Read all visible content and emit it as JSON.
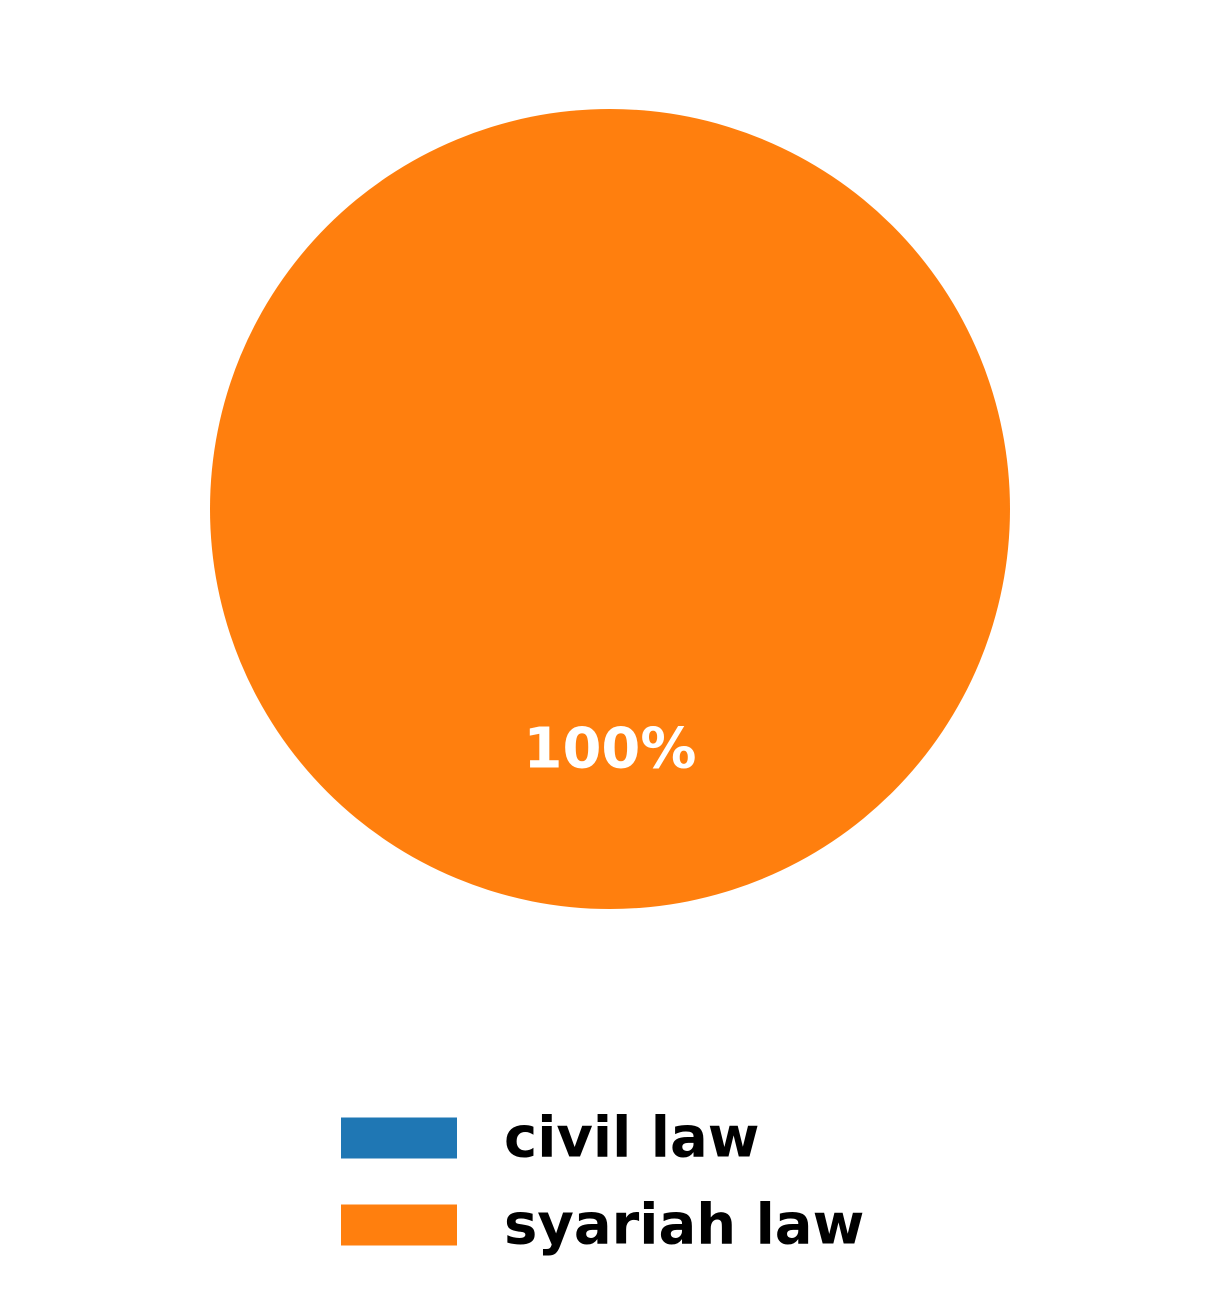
{
  "chart_data": {
    "type": "pie",
    "title": "",
    "slices": [
      {
        "label": "civil law",
        "value": 0,
        "color": "#1f77b4",
        "pct_label": ""
      },
      {
        "label": "syariah law",
        "value": 100,
        "color": "#ff7f0e",
        "pct_label": "100%"
      }
    ],
    "legend": {
      "placement": "bottom-center",
      "entries": [
        "civil law",
        "syariah law"
      ]
    }
  }
}
